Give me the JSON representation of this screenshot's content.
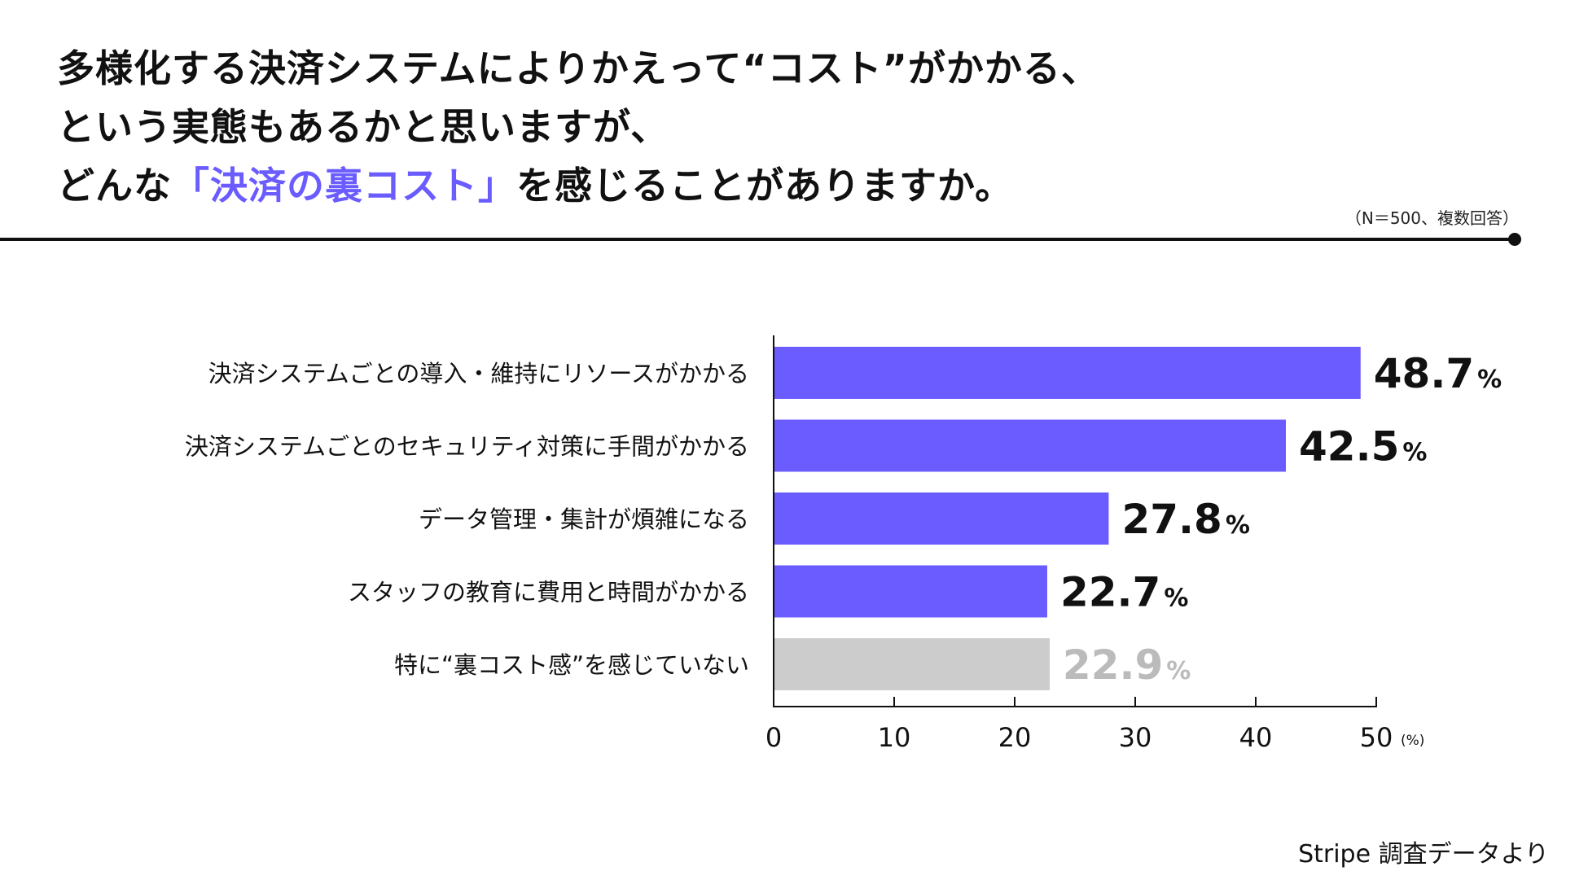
{
  "title": {
    "line1": "多様化する決済システムによりかえって“コスト”がかかる、",
    "line2": "という実態もあるかと思いますが、",
    "line3_pre": "どんな",
    "line3_accent": "「決済の裏コスト」",
    "line3_post": "を感じることがありますか。"
  },
  "note": "（N＝500、複数回答）",
  "source": "Stripe 調査データより",
  "colors": {
    "accent": "#6a5cff",
    "bar": "#6a5cff",
    "bar_muted": "#cccccc",
    "label_muted": "#bbbbbb",
    "text": "#111111"
  },
  "chart_data": {
    "type": "bar",
    "orientation": "horizontal",
    "categories": [
      "決済システムごとの導入・維持にリソースがかかる",
      "決済システムごとのセキュリティ対策に手間がかかる",
      "データ管理・集計が煩雑になる",
      "スタッフの教育に費用と時間がかかる",
      "特に“裏コスト感”を感じていない"
    ],
    "values": [
      48.7,
      42.5,
      27.8,
      22.7,
      22.9
    ],
    "value_labels": [
      "48.7",
      "42.5",
      "27.8",
      "22.7",
      "22.9"
    ],
    "value_unit": "%",
    "muted": [
      false,
      false,
      false,
      false,
      true
    ],
    "xlim": [
      0,
      50
    ],
    "xticks": [
      0,
      10,
      20,
      30,
      40,
      50
    ],
    "xunit": "(%)",
    "grid": false
  }
}
